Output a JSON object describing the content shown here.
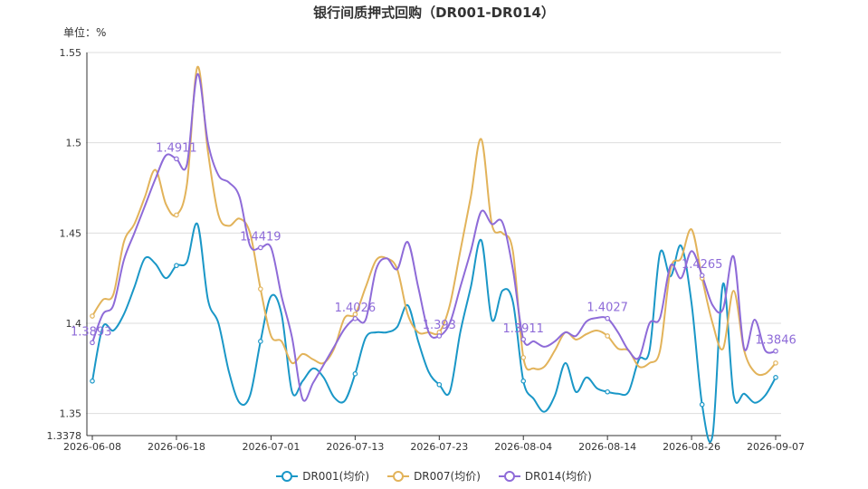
{
  "chart_data": {
    "type": "line",
    "title": "银行间质押式回购（DR001-DR014）",
    "ylabel": "单位：%",
    "ylim": [
      1.3378,
      1.55
    ],
    "yticks": [
      "1.3378",
      "1.35",
      "1.4",
      "1.45",
      "1.5",
      "1.55"
    ],
    "xticks": [
      "2026-06-08",
      "2026-06-18",
      "2026-07-01",
      "2026-07-13",
      "2026-07-23",
      "2026-08-04",
      "2026-08-14",
      "2026-08-26",
      "2026-09-07"
    ],
    "grid": true,
    "legend_position": "bottom",
    "x": [
      "2026-06-08",
      "2026-06-09",
      "2026-06-10",
      "2026-06-11",
      "2026-06-12",
      "2026-06-15",
      "2026-06-16",
      "2026-06-17",
      "2026-06-18",
      "2026-06-19",
      "2026-06-22",
      "2026-06-23",
      "2026-06-24",
      "2026-06-25",
      "2026-06-26",
      "2026-06-29",
      "2026-06-30",
      "2026-07-01",
      "2026-07-02",
      "2026-07-03",
      "2026-07-06",
      "2026-07-07",
      "2026-07-08",
      "2026-07-09",
      "2026-07-10",
      "2026-07-13",
      "2026-07-14",
      "2026-07-15",
      "2026-07-16",
      "2026-07-17",
      "2026-07-20",
      "2026-07-21",
      "2026-07-22",
      "2026-07-23",
      "2026-07-24",
      "2026-07-27",
      "2026-07-28",
      "2026-07-29",
      "2026-07-30",
      "2026-07-31",
      "2026-08-03",
      "2026-08-04",
      "2026-08-05",
      "2026-08-06",
      "2026-08-07",
      "2026-08-10",
      "2026-08-11",
      "2026-08-12",
      "2026-08-13",
      "2026-08-14",
      "2026-08-17",
      "2026-08-18",
      "2026-08-19",
      "2026-08-20",
      "2026-08-21",
      "2026-08-24",
      "2026-08-25",
      "2026-08-26",
      "2026-08-27",
      "2026-08-28",
      "2026-08-31",
      "2026-09-01",
      "2026-09-02",
      "2026-09-03",
      "2026-09-04",
      "2026-09-07"
    ],
    "series": [
      {
        "name": "DR001(均价)",
        "color": "#1a97c7",
        "values": [
          1.368,
          1.398,
          1.396,
          1.405,
          1.42,
          1.436,
          1.433,
          1.425,
          1.432,
          1.434,
          1.455,
          1.413,
          1.4,
          1.373,
          1.356,
          1.36,
          1.39,
          1.415,
          1.405,
          1.362,
          1.368,
          1.375,
          1.37,
          1.359,
          1.357,
          1.372,
          1.392,
          1.395,
          1.395,
          1.398,
          1.41,
          1.39,
          1.373,
          1.366,
          1.362,
          1.395,
          1.42,
          1.446,
          1.402,
          1.418,
          1.412,
          1.368,
          1.358,
          1.351,
          1.36,
          1.378,
          1.362,
          1.37,
          1.364,
          1.362,
          1.361,
          1.362,
          1.38,
          1.385,
          1.439,
          1.426,
          1.443,
          1.411,
          1.355,
          1.338,
          1.422,
          1.36,
          1.361,
          1.356,
          1.36,
          1.37
        ]
      },
      {
        "name": "DR007(均价)",
        "color": "#e2b35a",
        "values": [
          1.404,
          1.413,
          1.416,
          1.445,
          1.455,
          1.47,
          1.485,
          1.466,
          1.46,
          1.477,
          1.542,
          1.495,
          1.46,
          1.454,
          1.458,
          1.45,
          1.419,
          1.393,
          1.39,
          1.378,
          1.383,
          1.38,
          1.378,
          1.386,
          1.403,
          1.405,
          1.42,
          1.435,
          1.436,
          1.43,
          1.405,
          1.395,
          1.395,
          1.395,
          1.41,
          1.44,
          1.47,
          1.502,
          1.455,
          1.45,
          1.44,
          1.381,
          1.375,
          1.376,
          1.385,
          1.395,
          1.391,
          1.394,
          1.396,
          1.393,
          1.386,
          1.385,
          1.376,
          1.378,
          1.385,
          1.43,
          1.436,
          1.452,
          1.425,
          1.4,
          1.386,
          1.418,
          1.385,
          1.373,
          1.372,
          1.378
        ]
      },
      {
        "name": "DR014(均价)",
        "color": "#8e6bd8",
        "values": [
          1.3893,
          1.405,
          1.41,
          1.435,
          1.45,
          1.465,
          1.48,
          1.493,
          1.4911,
          1.488,
          1.538,
          1.5,
          1.482,
          1.478,
          1.47,
          1.443,
          1.4419,
          1.4419,
          1.415,
          1.392,
          1.358,
          1.367,
          1.377,
          1.387,
          1.397,
          1.4026,
          1.402,
          1.43,
          1.436,
          1.43,
          1.445,
          1.42,
          1.395,
          1.393,
          1.4,
          1.42,
          1.44,
          1.462,
          1.455,
          1.456,
          1.43,
          1.3911,
          1.39,
          1.387,
          1.39,
          1.395,
          1.393,
          1.401,
          1.403,
          1.4027,
          1.395,
          1.385,
          1.381,
          1.4,
          1.403,
          1.432,
          1.425,
          1.44,
          1.4265,
          1.41,
          1.408,
          1.437,
          1.386,
          1.402,
          1.385,
          1.3846
        ]
      }
    ],
    "data_labels": [
      {
        "series": 2,
        "index": 0,
        "text": "1.3893"
      },
      {
        "series": 2,
        "index": 8,
        "text": "1.4911"
      },
      {
        "series": 2,
        "index": 16,
        "text": "1.4419"
      },
      {
        "series": 2,
        "index": 25,
        "text": "1.4026"
      },
      {
        "series": 2,
        "index": 33,
        "text": "1.393"
      },
      {
        "series": 2,
        "index": 41,
        "text": "1.3911"
      },
      {
        "series": 2,
        "index": 49,
        "text": "1.4027"
      },
      {
        "series": 2,
        "index": 58,
        "text": "1.4265"
      },
      {
        "series": 2,
        "index": 65,
        "text": "1.3846"
      }
    ]
  }
}
